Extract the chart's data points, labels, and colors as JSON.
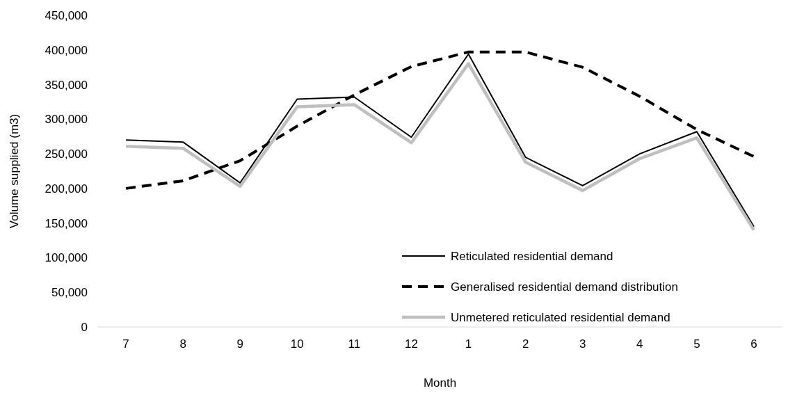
{
  "chart_data": {
    "type": "line",
    "xlabel": "Month",
    "ylabel": "Volume supplied (m3)",
    "categories": [
      "7",
      "8",
      "9",
      "10",
      "11",
      "12",
      "1",
      "2",
      "3",
      "4",
      "5",
      "6"
    ],
    "series": [
      {
        "name": "Reticulated residential demand",
        "color": "#000000",
        "line_style": "solid",
        "values": [
          270000,
          267000,
          208000,
          329000,
          332000,
          274000,
          394000,
          245000,
          204000,
          250000,
          282000,
          145000
        ]
      },
      {
        "name": "Generalised residential demand distribution",
        "color": "#000000",
        "line_style": "dashed",
        "values": [
          200000,
          211000,
          240000,
          290000,
          335000,
          376000,
          397000,
          397000,
          375000,
          333000,
          285000,
          246000
        ]
      },
      {
        "name": "Unmetered reticulated residential demand",
        "color": "#bfbfbf",
        "line_style": "solid",
        "values": [
          261000,
          258000,
          203000,
          318000,
          321000,
          266000,
          380000,
          238000,
          197000,
          243000,
          273000,
          140000
        ]
      }
    ],
    "ylim": [
      0,
      450000
    ],
    "yticks": [
      {
        "value": 0,
        "label": "0"
      },
      {
        "value": 50000,
        "label": "50,000"
      },
      {
        "value": 100000,
        "label": "100,000"
      },
      {
        "value": 150000,
        "label": "150,000"
      },
      {
        "value": 200000,
        "label": "200,000"
      },
      {
        "value": 250000,
        "label": "250,000"
      },
      {
        "value": 300000,
        "label": "300,000"
      },
      {
        "value": 350000,
        "label": "350,000"
      },
      {
        "value": 400000,
        "label": "400,000"
      },
      {
        "value": 450000,
        "label": "450,000"
      }
    ],
    "grid": false,
    "legend": "bottom right",
    "marker": "none"
  }
}
